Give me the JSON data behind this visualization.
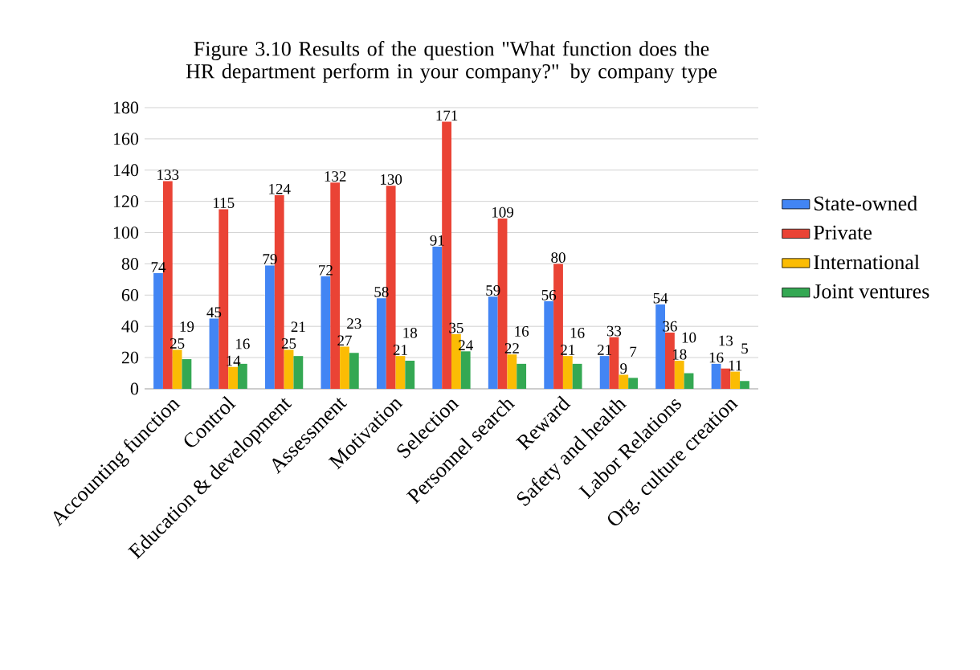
{
  "chart_data": {
    "type": "bar",
    "title": "Figure 3.10 Results of the question \"What function does the HR department perform in your company?\" by company type",
    "categories": [
      "Accounting function",
      "Control",
      "Education & development",
      "Assessment",
      "Motivation",
      "Selection",
      "Personnel search",
      "Reward",
      "Safety and health",
      "Labor Relations",
      "Org. culture creation"
    ],
    "series": [
      {
        "name": "State-owned",
        "color": "#4285f4",
        "values": [
          74,
          45,
          79,
          72,
          58,
          91,
          59,
          56,
          21,
          54,
          16
        ]
      },
      {
        "name": "Private",
        "color": "#ea4335",
        "values": [
          133,
          115,
          124,
          132,
          130,
          171,
          109,
          80,
          33,
          36,
          13
        ]
      },
      {
        "name": "International",
        "color": "#fbbc04",
        "values": [
          25,
          14,
          25,
          27,
          21,
          35,
          22,
          21,
          9,
          18,
          11
        ]
      },
      {
        "name": "Joint ventures",
        "color": "#34a853",
        "values": [
          19,
          16,
          21,
          23,
          18,
          24,
          16,
          16,
          7,
          10,
          5
        ]
      }
    ],
    "ylim": [
      0,
      180
    ],
    "yticks": [
      0,
      20,
      40,
      60,
      80,
      100,
      120,
      140,
      160,
      180
    ],
    "grid": "y",
    "legend": "right",
    "data_labels": true
  }
}
